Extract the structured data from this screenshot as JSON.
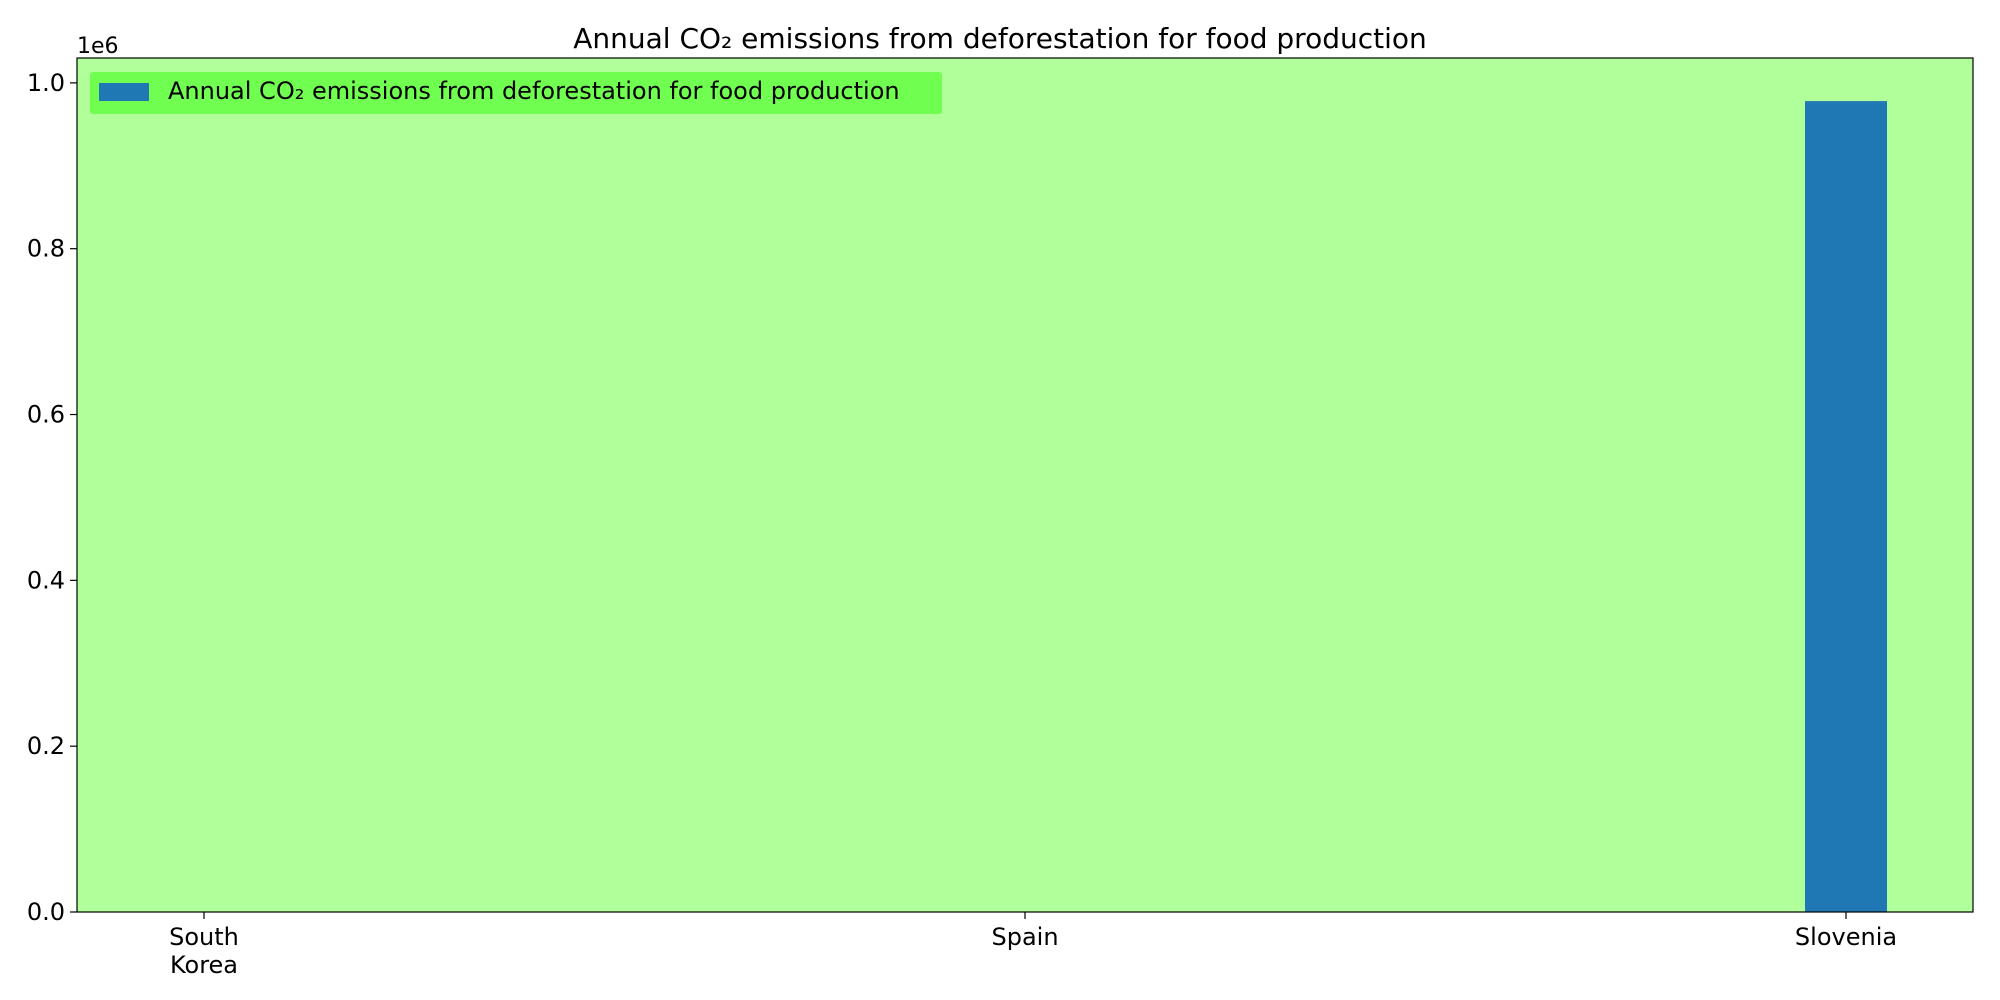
{
  "chart_data": {
    "type": "bar",
    "title": "Annual CO₂ emissions from deforestation for food production",
    "xlabel": "",
    "ylabel": "",
    "categories": [
      [
        "South",
        "Korea"
      ],
      [
        "Spain"
      ],
      [
        "Slovenia"
      ]
    ],
    "series": [
      {
        "name": "Annual CO₂ emissions from deforestation for food production",
        "values": [
          0,
          0,
          978000
        ]
      }
    ],
    "ylim": [
      0,
      1030000
    ],
    "yticks": [
      "0.0",
      "0.2",
      "0.4",
      "0.6",
      "0.8",
      "1.0"
    ],
    "y_offset_label": "1e6",
    "legend": "upper-left",
    "grid": false,
    "colors": {
      "bar": "#1f77b4",
      "plot_background": "#b0ff9b",
      "legend_background": "#70ff50"
    }
  }
}
